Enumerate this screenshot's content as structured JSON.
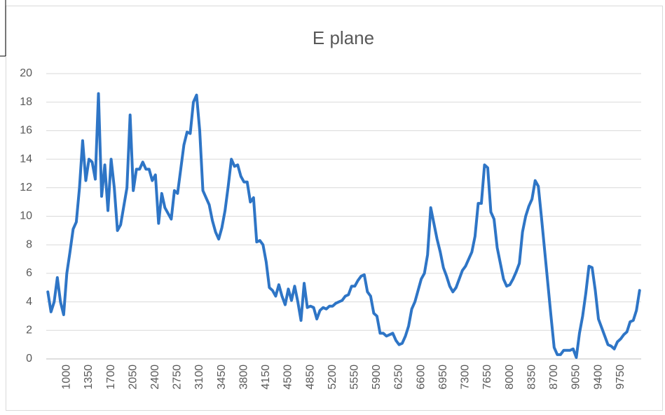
{
  "chart_data": {
    "type": "line",
    "title": "E plane",
    "categories": [
      null,
      null,
      null,
      null,
      null,
      null,
      "1000",
      null,
      null,
      null,
      null,
      null,
      null,
      "1350",
      null,
      null,
      null,
      null,
      null,
      null,
      "1700",
      null,
      null,
      null,
      null,
      null,
      null,
      "2050",
      null,
      null,
      null,
      null,
      null,
      null,
      "2400",
      null,
      null,
      null,
      null,
      null,
      null,
      "2750",
      null,
      null,
      null,
      null,
      null,
      null,
      "3100",
      null,
      null,
      null,
      null,
      null,
      null,
      "3450",
      null,
      null,
      null,
      null,
      null,
      null,
      "3800",
      null,
      null,
      null,
      null,
      null,
      null,
      "4150",
      null,
      null,
      null,
      null,
      null,
      null,
      "4500",
      null,
      null,
      null,
      null,
      null,
      null,
      "4850",
      null,
      null,
      null,
      null,
      null,
      null,
      "5200",
      null,
      null,
      null,
      null,
      null,
      null,
      "5550",
      null,
      null,
      null,
      null,
      null,
      null,
      "5900",
      null,
      null,
      null,
      null,
      null,
      null,
      "6250",
      null,
      null,
      null,
      null,
      null,
      null,
      "6600",
      null,
      null,
      null,
      null,
      null,
      null,
      "6950",
      null,
      null,
      null,
      null,
      null,
      null,
      "7300",
      null,
      null,
      null,
      null,
      null,
      null,
      "7650",
      null,
      null,
      null,
      null,
      null,
      null,
      "8000",
      null,
      null,
      null,
      null,
      null,
      null,
      "8350",
      null,
      null,
      null,
      null,
      null,
      null,
      "8700",
      null,
      null,
      null,
      null,
      null,
      null,
      "9050",
      null,
      null,
      null,
      null,
      null,
      null,
      "9400",
      null,
      null,
      null,
      null,
      null,
      null,
      "9750",
      null,
      null,
      null,
      null,
      null,
      null
    ],
    "series": [
      {
        "name": "E plane",
        "color": "#2e75c6",
        "values": [
          4.7,
          3.3,
          4,
          5.7,
          4,
          3.1,
          6,
          7.5,
          9.1,
          9.6,
          12,
          15.3,
          12.5,
          14,
          13.8,
          12.6,
          18.6,
          11.4,
          13.6,
          10.4,
          14,
          12,
          9,
          9.4,
          10.7,
          12,
          17.1,
          11.8,
          13.3,
          13.3,
          13.8,
          13.3,
          13.3,
          12.5,
          12.9,
          9.5,
          11.6,
          10.6,
          10.2,
          9.8,
          11.8,
          11.6,
          13.3,
          15,
          15.9,
          15.8,
          18,
          18.5,
          16,
          11.8,
          11.3,
          10.8,
          9.7,
          8.9,
          8.4,
          9.2,
          10.4,
          12.1,
          14,
          13.5,
          13.6,
          12.8,
          12.4,
          12.4,
          11,
          11.3,
          8.2,
          8.3,
          8,
          6.8,
          5,
          4.8,
          4.4,
          5.2,
          4.4,
          3.8,
          4.9,
          4.1,
          5.1,
          4,
          2.7,
          5.3,
          3.6,
          3.7,
          3.6,
          2.8,
          3.4,
          3.6,
          3.5,
          3.7,
          3.7,
          3.9,
          4,
          4.1,
          4.4,
          4.5,
          5.1,
          5.1,
          5.5,
          5.8,
          5.9,
          4.7,
          4.4,
          3.2,
          3,
          1.8,
          1.8,
          1.6,
          1.7,
          1.8,
          1.3,
          1,
          1.1,
          1.6,
          2.3,
          3.5,
          4,
          4.8,
          5.6,
          6,
          7.3,
          10.6,
          9.5,
          8.4,
          7.5,
          6.4,
          5.8,
          5.1,
          4.7,
          5,
          5.6,
          6.2,
          6.5,
          7,
          7.5,
          8.6,
          10.9,
          10.9,
          13.6,
          13.4,
          10.3,
          9.8,
          7.8,
          6.7,
          5.6,
          5.1,
          5.2,
          5.6,
          6.1,
          6.7,
          8.9,
          10,
          10.7,
          11.2,
          12.5,
          12.1,
          9.9,
          7.6,
          5.3,
          3,
          0.8,
          0.3,
          0.3,
          0.6,
          0.6,
          0.6,
          0.7,
          0.1,
          1.8,
          3,
          4.6,
          6.5,
          6.4,
          4.8,
          2.8,
          2.2,
          1.6,
          1,
          0.9,
          0.7,
          1.2,
          1.4,
          1.7,
          1.9,
          2.6,
          2.7,
          3.4,
          4.8
        ]
      }
    ],
    "ylim": [
      0,
      20
    ],
    "yticks": [
      0,
      2,
      4,
      6,
      8,
      10,
      12,
      14,
      16,
      18,
      20
    ],
    "grid": true
  }
}
